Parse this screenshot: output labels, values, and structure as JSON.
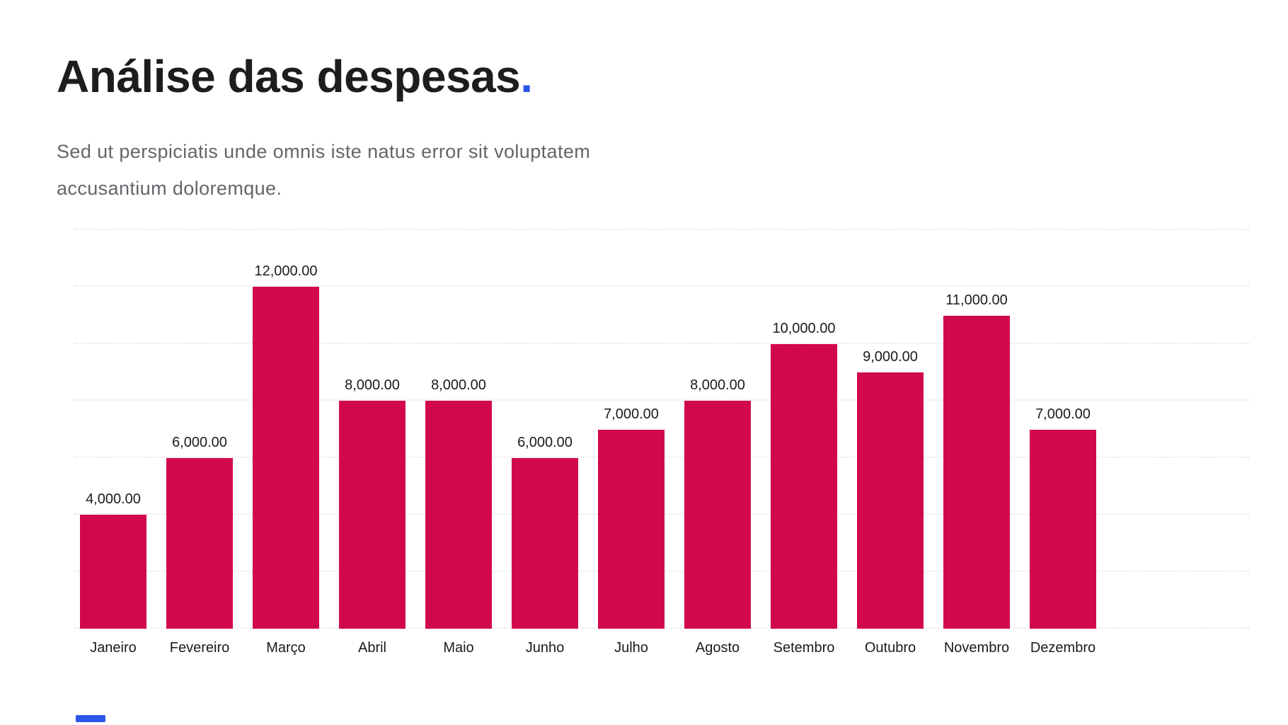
{
  "page": {
    "title": "Análise das despesas",
    "title_accent": ".",
    "subtitle_line1": "Sed ut perspiciatis unde omnis iste natus error sit voluptatem",
    "subtitle_line2": "accusantium doloremque."
  },
  "colors": {
    "bar": "#d2084f",
    "accent_blue": "#2d56e9",
    "title_text": "#1d1d1f",
    "subtitle_text": "#63666b",
    "label_text": "#1a1b1e",
    "gridline": "#e7e7e7",
    "background": "#ffffff"
  },
  "chart_data": {
    "type": "bar",
    "title": "",
    "xlabel": "",
    "ylabel": "",
    "categories": [
      "Janeiro",
      "Fevereiro",
      "Março",
      "Abril",
      "Maio",
      "Junho",
      "Julho",
      "Agosto",
      "Setembro",
      "Outubro",
      "Novembro",
      "Dezembro"
    ],
    "values": [
      4000,
      6000,
      12000,
      8000,
      8000,
      6000,
      7000,
      8000,
      10000,
      9000,
      11000,
      7000
    ],
    "value_labels": [
      "4,000.00",
      "6,000.00",
      "12,000.00",
      "8,000.00",
      "8,000.00",
      "6,000.00",
      "7,000.00",
      "8,000.00",
      "10,000.00",
      "9,000.00",
      "11,000.00",
      "7,000.00"
    ],
    "ylim": [
      0,
      14000
    ],
    "grid_step": 2000,
    "grid": true,
    "grid_style": "dotted",
    "legend": false,
    "y_axis_labels_visible": false,
    "value_labels_position": "above-bars"
  }
}
